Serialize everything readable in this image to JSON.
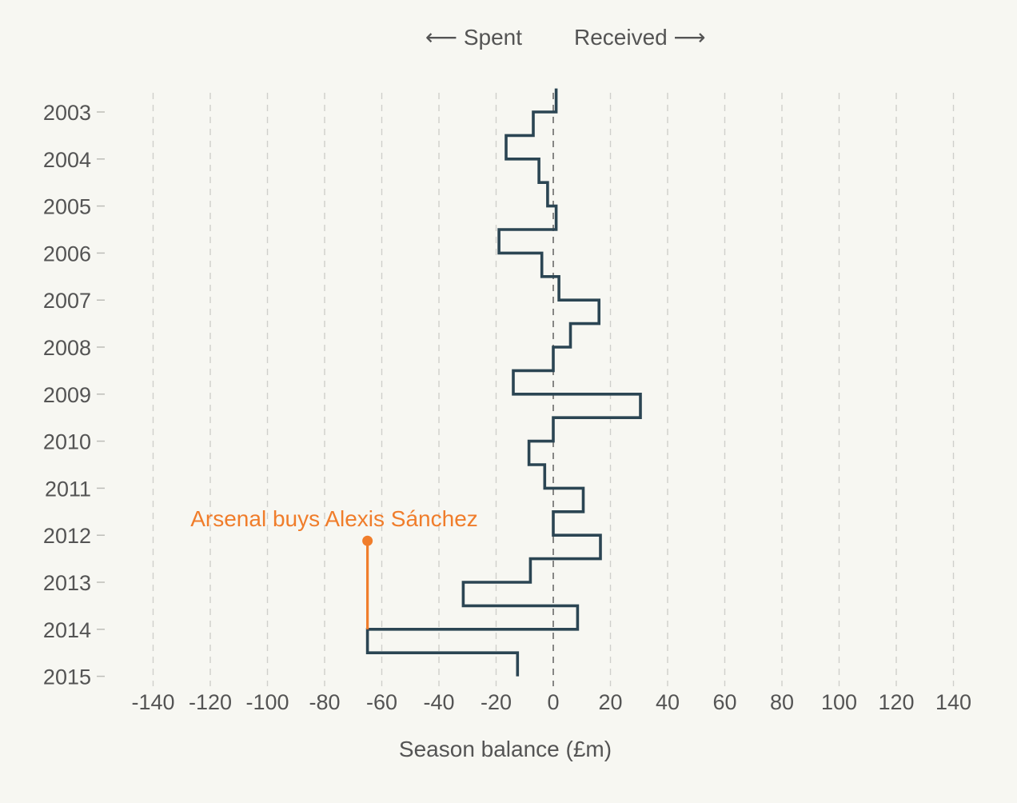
{
  "chart_data": {
    "type": "line",
    "orientation": "vertical-step",
    "xlabel": "Season balance (£m)",
    "xlim": [
      -140,
      140
    ],
    "x_ticks": [
      -140,
      -120,
      -100,
      -80,
      -60,
      -40,
      -20,
      0,
      20,
      40,
      60,
      80,
      100,
      120,
      140
    ],
    "y_ticks": [
      "2003",
      "2004",
      "2005",
      "2006",
      "2007",
      "2008",
      "2009",
      "2010",
      "2011",
      "2012",
      "2013",
      "2014",
      "2015"
    ],
    "direction_labels": {
      "left": "⟵ Spent",
      "right": "Received ⟶"
    },
    "grid": "vertical dashed",
    "series": [
      {
        "color": "#2b4553",
        "points": [
          {
            "date": "2002-07",
            "balance": 1
          },
          {
            "date": "2003-01",
            "balance": -7
          },
          {
            "date": "2003-07",
            "balance": -16.5
          },
          {
            "date": "2004-01",
            "balance": -5
          },
          {
            "date": "2004-07",
            "balance": -2
          },
          {
            "date": "2005-01",
            "balance": 1
          },
          {
            "date": "2005-07",
            "balance": -19
          },
          {
            "date": "2006-01",
            "balance": -4
          },
          {
            "date": "2006-07",
            "balance": 2
          },
          {
            "date": "2007-01",
            "balance": 16
          },
          {
            "date": "2007-07",
            "balance": 6
          },
          {
            "date": "2008-01",
            "balance": 0
          },
          {
            "date": "2008-07",
            "balance": -14
          },
          {
            "date": "2009-01",
            "balance": 30.5
          },
          {
            "date": "2009-07",
            "balance": 0
          },
          {
            "date": "2010-01",
            "balance": -8.5
          },
          {
            "date": "2010-07",
            "balance": -3
          },
          {
            "date": "2011-01",
            "balance": 10.5
          },
          {
            "date": "2011-07",
            "balance": 0
          },
          {
            "date": "2012-01",
            "balance": 16.5
          },
          {
            "date": "2012-07",
            "balance": -8
          },
          {
            "date": "2013-01",
            "balance": -31.5
          },
          {
            "date": "2013-07",
            "balance": 8.5
          },
          {
            "date": "2014-01",
            "balance": -65
          },
          {
            "date": "2014-07",
            "balance": -12.5
          }
        ]
      }
    ],
    "annotation": {
      "text": "Arsenal buys Alexis Sánchez",
      "color": "#f07d2b",
      "x_value": -65,
      "date_from": "2014-01",
      "date_to": "2012-01"
    }
  }
}
